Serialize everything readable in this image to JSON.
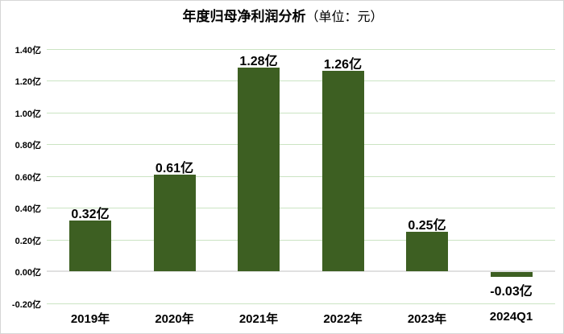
{
  "chart_data": {
    "type": "bar",
    "title": "年度归母净利润分析",
    "title_suffix": "（单位：元）",
    "unit": "亿",
    "categories": [
      "2019年",
      "2020年",
      "2021年",
      "2022年",
      "2023年",
      "2024Q1"
    ],
    "values": [
      0.32,
      0.61,
      1.28,
      1.26,
      0.25,
      -0.03
    ],
    "data_labels": [
      "0.32亿",
      "0.61亿",
      "1.28亿",
      "1.26亿",
      "0.25亿",
      "-0.03亿"
    ],
    "y_tick_values": [
      1.4,
      1.2,
      1.0,
      0.8,
      0.6,
      0.4,
      0.2,
      0.0,
      -0.2
    ],
    "y_tick_labels": [
      "1.40亿",
      "1.20亿",
      "1.00亿",
      "0.80亿",
      "0.60亿",
      "0.40亿",
      "0.20亿",
      "0.00亿",
      "-0.20亿"
    ],
    "ylim": [
      -0.2,
      1.4
    ],
    "xlabel": "",
    "ylabel": "",
    "grid": true,
    "legend": false,
    "colors": {
      "bar": "#3D5F22",
      "gridline": "#CBE4C3",
      "zero_line": "#E0E0E0",
      "text": "#000000",
      "border": "#D6D6D6",
      "background": "#FFFFFF"
    }
  }
}
